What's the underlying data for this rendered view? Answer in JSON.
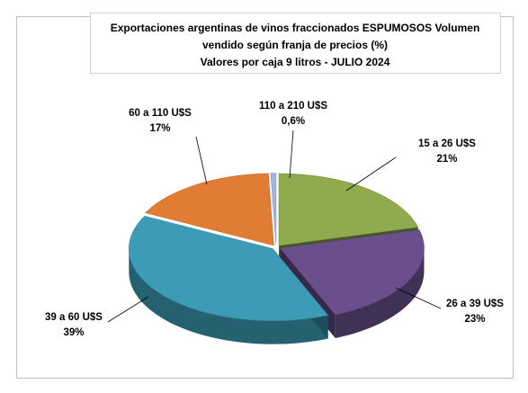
{
  "chart_data": {
    "type": "pie3d",
    "title_lines": [
      "Exportaciones argentinas de vinos fraccionados ESPUMOSOS  Volumen",
      "vendido según franja de precios (%)",
      "Valores por caja  9 litros -  JULIO 2024"
    ],
    "categories": [
      "15 a 26 U$S",
      "26 a 39 U$S",
      "39 a 60 U$S",
      "60 a 110 U$S",
      "110 a 210 U$S"
    ],
    "values": [
      21,
      23,
      39,
      17,
      0.6
    ],
    "value_labels": [
      "21%",
      "23%",
      "39%",
      "17%",
      "0,6%"
    ],
    "colors": [
      "#8fab4e",
      "#6b4f8c",
      "#3c9cb6",
      "#e17c34",
      "#a4b4dc"
    ]
  }
}
